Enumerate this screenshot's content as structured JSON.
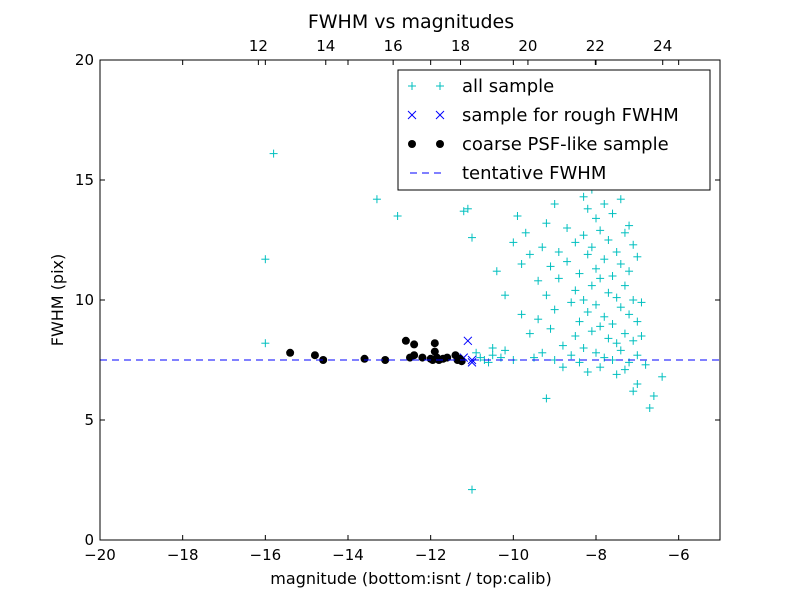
{
  "chart_data": {
    "type": "scatter",
    "title": "FWHM vs magnitudes",
    "xlabel": "magnitude (bottom:isnt / top:calib)",
    "ylabel": "FWHM (pix)",
    "xlim": [
      -20,
      -5
    ],
    "ylim": [
      0,
      20
    ],
    "x_ticks": [
      -20,
      -18,
      -16,
      -14,
      -12,
      -10,
      -8,
      -6
    ],
    "x_tick_labels": [
      "−20",
      "−18",
      "−16",
      "−14",
      "−12",
      "−10",
      "−8",
      "−6"
    ],
    "y_ticks": [
      0,
      5,
      10,
      15,
      20
    ],
    "y_tick_labels": [
      "0",
      "5",
      "10",
      "15",
      "20"
    ],
    "top_axis": {
      "xlim": [
        7.3,
        25.7
      ],
      "ticks": [
        12,
        14,
        16,
        18,
        20,
        22,
        24
      ],
      "tick_labels": [
        "12",
        "14",
        "16",
        "18",
        "20",
        "22",
        "24"
      ]
    },
    "grid": false,
    "legend_position": "top-right",
    "series": [
      {
        "name": "all sample",
        "marker": "plus",
        "color": "#00bfbf",
        "points": [
          [
            -16.0,
            11.7
          ],
          [
            -16.0,
            8.2
          ],
          [
            -15.8,
            16.1
          ],
          [
            -13.3,
            14.2
          ],
          [
            -12.8,
            13.5
          ],
          [
            -11.2,
            13.7
          ],
          [
            -11.1,
            13.8
          ],
          [
            -11.0,
            12.6
          ],
          [
            -10.9,
            7.8
          ],
          [
            -10.8,
            7.6
          ],
          [
            -10.7,
            7.5
          ],
          [
            -10.5,
            7.7
          ],
          [
            -10.5,
            8.0
          ],
          [
            -10.4,
            11.2
          ],
          [
            -10.3,
            7.6
          ],
          [
            -10.2,
            10.2
          ],
          [
            -10.2,
            7.9
          ],
          [
            -10.0,
            7.5
          ],
          [
            -10.0,
            12.4
          ],
          [
            -9.9,
            13.5
          ],
          [
            -9.8,
            11.5
          ],
          [
            -9.8,
            9.4
          ],
          [
            -9.7,
            12.8
          ],
          [
            -9.6,
            11.9
          ],
          [
            -9.6,
            8.6
          ],
          [
            -9.5,
            7.6
          ],
          [
            -9.4,
            10.8
          ],
          [
            -9.4,
            9.2
          ],
          [
            -9.3,
            12.2
          ],
          [
            -9.3,
            7.8
          ],
          [
            -9.2,
            13.2
          ],
          [
            -9.2,
            10.2
          ],
          [
            -9.2,
            5.9
          ],
          [
            -9.1,
            11.4
          ],
          [
            -9.1,
            8.8
          ],
          [
            -9.0,
            14.0
          ],
          [
            -9.0,
            9.6
          ],
          [
            -9.0,
            7.5
          ],
          [
            -8.9,
            12.0
          ],
          [
            -8.9,
            10.9
          ],
          [
            -8.8,
            8.1
          ],
          [
            -8.8,
            7.2
          ],
          [
            -8.7,
            13.0
          ],
          [
            -8.7,
            11.6
          ],
          [
            -8.6,
            9.9
          ],
          [
            -8.6,
            7.7
          ],
          [
            -8.5,
            12.4
          ],
          [
            -8.5,
            10.4
          ],
          [
            -8.5,
            8.5
          ],
          [
            -8.4,
            11.1
          ],
          [
            -8.4,
            9.1
          ],
          [
            -8.4,
            7.4
          ],
          [
            -8.3,
            14.3
          ],
          [
            -8.3,
            12.7
          ],
          [
            -8.3,
            10.0
          ],
          [
            -8.3,
            8.0
          ],
          [
            -8.2,
            13.8
          ],
          [
            -8.2,
            11.9
          ],
          [
            -8.2,
            9.5
          ],
          [
            -8.2,
            7.0
          ],
          [
            -8.1,
            14.6
          ],
          [
            -8.1,
            12.2
          ],
          [
            -8.1,
            10.6
          ],
          [
            -8.1,
            8.7
          ],
          [
            -8.0,
            13.4
          ],
          [
            -8.0,
            11.3
          ],
          [
            -8.0,
            9.8
          ],
          [
            -8.0,
            7.8
          ],
          [
            -7.9,
            12.9
          ],
          [
            -7.9,
            10.9
          ],
          [
            -7.9,
            8.9
          ],
          [
            -7.9,
            7.2
          ],
          [
            -7.8,
            14.0
          ],
          [
            -7.8,
            11.7
          ],
          [
            -7.8,
            9.3
          ],
          [
            -7.8,
            7.6
          ],
          [
            -7.7,
            12.5
          ],
          [
            -7.7,
            10.3
          ],
          [
            -7.7,
            8.4
          ],
          [
            -7.6,
            13.6
          ],
          [
            -7.6,
            11.0
          ],
          [
            -7.6,
            9.0
          ],
          [
            -7.6,
            7.5
          ],
          [
            -7.5,
            12.0
          ],
          [
            -7.5,
            10.1
          ],
          [
            -7.5,
            8.2
          ],
          [
            -7.5,
            6.9
          ],
          [
            -7.4,
            14.2
          ],
          [
            -7.4,
            11.5
          ],
          [
            -7.4,
            9.7
          ],
          [
            -7.4,
            7.9
          ],
          [
            -7.3,
            12.8
          ],
          [
            -7.3,
            10.6
          ],
          [
            -7.3,
            8.6
          ],
          [
            -7.3,
            7.1
          ],
          [
            -7.2,
            13.1
          ],
          [
            -7.2,
            11.2
          ],
          [
            -7.2,
            9.4
          ],
          [
            -7.2,
            7.4
          ],
          [
            -7.1,
            12.3
          ],
          [
            -7.1,
            10.0
          ],
          [
            -7.1,
            8.3
          ],
          [
            -7.1,
            6.2
          ],
          [
            -7.0,
            11.8
          ],
          [
            -7.0,
            9.1
          ],
          [
            -7.0,
            7.7
          ],
          [
            -7.0,
            6.5
          ],
          [
            -6.9,
            9.9
          ],
          [
            -6.9,
            8.5
          ],
          [
            -6.8,
            7.3
          ],
          [
            -6.7,
            5.5
          ],
          [
            -6.6,
            6.0
          ],
          [
            -6.4,
            6.8
          ],
          [
            -11.0,
            2.1
          ],
          [
            -10.6,
            7.4
          ]
        ]
      },
      {
        "name": "sample for rough FWHM",
        "marker": "x",
        "color": "#0000ff",
        "points": [
          [
            -11.1,
            8.3
          ],
          [
            -11.0,
            7.5
          ],
          [
            -11.0,
            7.4
          ],
          [
            -11.2,
            7.6
          ]
        ]
      },
      {
        "name": "coarse PSF-like sample",
        "marker": "dot",
        "color": "#000000",
        "points": [
          [
            -15.4,
            7.8
          ],
          [
            -14.8,
            7.7
          ],
          [
            -14.6,
            7.5
          ],
          [
            -13.6,
            7.55
          ],
          [
            -13.1,
            7.5
          ],
          [
            -12.6,
            8.3
          ],
          [
            -12.5,
            7.6
          ],
          [
            -12.4,
            8.15
          ],
          [
            -12.4,
            7.7
          ],
          [
            -12.2,
            7.6
          ],
          [
            -12.0,
            7.55
          ],
          [
            -11.95,
            7.5
          ],
          [
            -11.9,
            8.2
          ],
          [
            -11.9,
            7.85
          ],
          [
            -11.85,
            7.6
          ],
          [
            -11.8,
            7.5
          ],
          [
            -11.7,
            7.55
          ],
          [
            -11.6,
            7.6
          ],
          [
            -11.4,
            7.7
          ],
          [
            -11.35,
            7.5
          ],
          [
            -11.3,
            7.55
          ],
          [
            -11.25,
            7.45
          ]
        ]
      },
      {
        "name": "tentative FWHM",
        "marker": "dashed-line",
        "color": "#0000ff",
        "y": 7.5
      }
    ]
  }
}
